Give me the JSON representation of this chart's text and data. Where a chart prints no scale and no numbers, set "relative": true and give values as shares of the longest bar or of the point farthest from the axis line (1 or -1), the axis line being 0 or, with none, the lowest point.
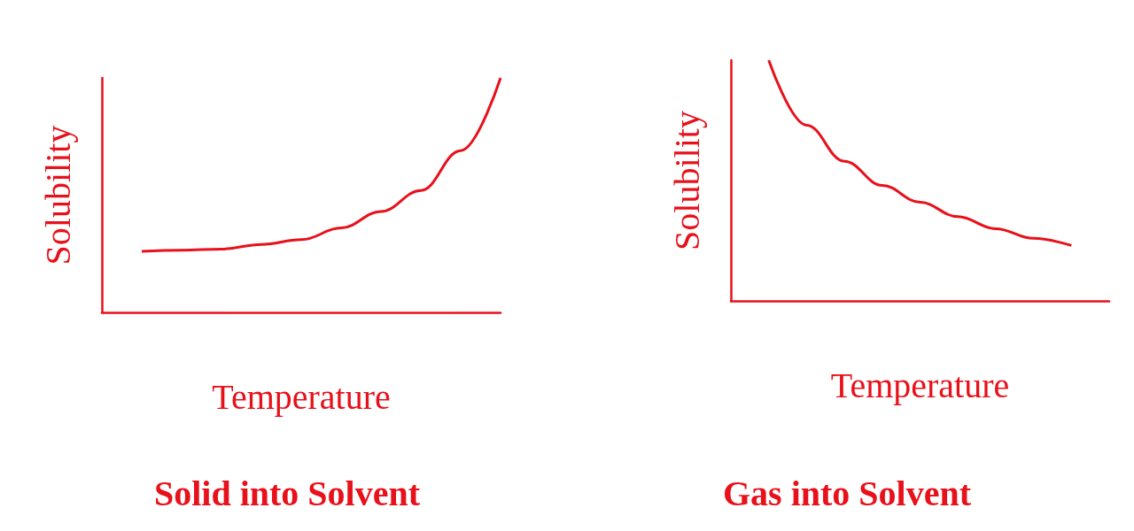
{
  "chart_data": [
    {
      "type": "line",
      "title": "Solid into Solvent",
      "xlabel": "Temperature",
      "ylabel": "Solubility",
      "relative": true,
      "grid": false,
      "marker": "none",
      "categories": [
        null,
        null,
        null,
        null,
        null,
        null,
        null,
        null,
        null,
        null,
        null
      ],
      "series": [
        {
          "color": "#e8101a",
          "values": [
            null,
            0.26,
            0.265,
            0.27,
            0.29,
            0.31,
            0.36,
            0.43,
            0.52,
            0.69,
            1
          ]
        }
      ]
    },
    {
      "type": "line",
      "title": "Gas into Solvent",
      "xlabel": "Temperature",
      "ylabel": "Solubility",
      "relative": true,
      "grid": false,
      "marker": "none",
      "categories": [
        null,
        null,
        null,
        null,
        null,
        null,
        null,
        null,
        null,
        null,
        null
      ],
      "series": [
        {
          "color": "#e8101a",
          "values": [
            null,
            1,
            0.73,
            0.58,
            0.48,
            0.41,
            0.35,
            0.3,
            0.26,
            0.23,
            null
          ]
        }
      ]
    }
  ]
}
